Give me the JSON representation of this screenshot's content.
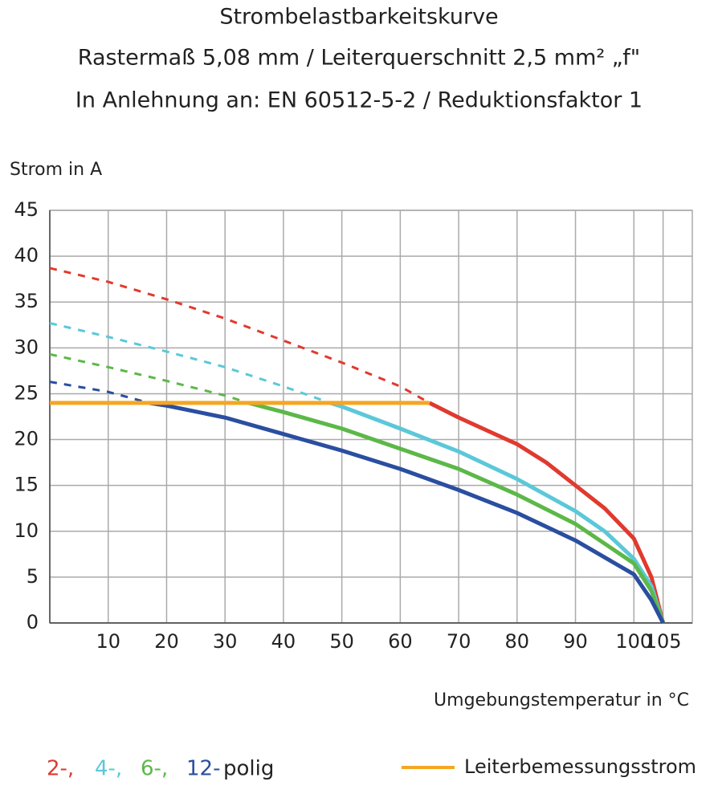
{
  "chart_data": {
    "type": "line",
    "title": "Strombelastbarkeitskurve",
    "subtitle": "Rastermaß 5,08 mm / Leiterquerschnitt 2,5 mm² „f\"",
    "subtitle2": "In Anlehnung an: EN 60512-5-2 / Reduktionsfaktor 1",
    "y_label": "Strom in A",
    "x_label": "Umgebungstemperatur in °C",
    "legend_suffix": "polig",
    "xlim": [
      0,
      110
    ],
    "xticks": [
      10,
      20,
      30,
      40,
      50,
      60,
      70,
      80,
      90,
      100,
      105
    ],
    "ylim": [
      0,
      45
    ],
    "yticks": [
      0,
      5,
      10,
      15,
      20,
      25,
      30,
      35,
      40,
      45
    ],
    "grid": true,
    "series": [
      {
        "name": "2-,",
        "color": "#e03a2e",
        "dash_until": 65,
        "x": [
          0,
          10,
          20,
          30,
          40,
          50,
          60,
          65,
          70,
          80,
          85,
          90,
          95,
          100,
          103,
          105
        ],
        "values": [
          38.7,
          37.2,
          35.3,
          33.2,
          30.8,
          28.4,
          25.8,
          24,
          22.4,
          19.5,
          17.5,
          15,
          12.5,
          9.2,
          5,
          0
        ]
      },
      {
        "name": "4-,",
        "color": "#5bc8d8",
        "dash_until": 48,
        "x": [
          0,
          10,
          20,
          30,
          40,
          48,
          50,
          60,
          70,
          80,
          90,
          95,
          100,
          103,
          105
        ],
        "values": [
          32.7,
          31.2,
          29.6,
          27.9,
          25.8,
          24,
          23.6,
          21.2,
          18.7,
          15.7,
          12.2,
          10,
          7,
          4,
          0
        ]
      },
      {
        "name": "6-,",
        "color": "#5cb848",
        "dash_until": 34,
        "x": [
          0,
          10,
          20,
          30,
          34,
          40,
          50,
          60,
          70,
          80,
          90,
          100,
          103,
          105
        ],
        "values": [
          29.3,
          27.9,
          26.4,
          24.8,
          24,
          23,
          21.2,
          19,
          16.8,
          14,
          10.8,
          6.5,
          3.5,
          0
        ]
      },
      {
        "name": "12-",
        "color": "#2a4ea0",
        "dash_until": 17,
        "x": [
          0,
          10,
          17,
          20,
          30,
          40,
          50,
          60,
          70,
          80,
          90,
          100,
          103,
          105
        ],
        "values": [
          26.3,
          25.2,
          24,
          23.7,
          22.4,
          20.6,
          18.8,
          16.8,
          14.5,
          12,
          9,
          5.3,
          2.5,
          0
        ]
      },
      {
        "name": "Leiterbemessungsstrom",
        "color": "#f5a623",
        "x": [
          0,
          65
        ],
        "values": [
          24,
          24
        ]
      }
    ]
  }
}
